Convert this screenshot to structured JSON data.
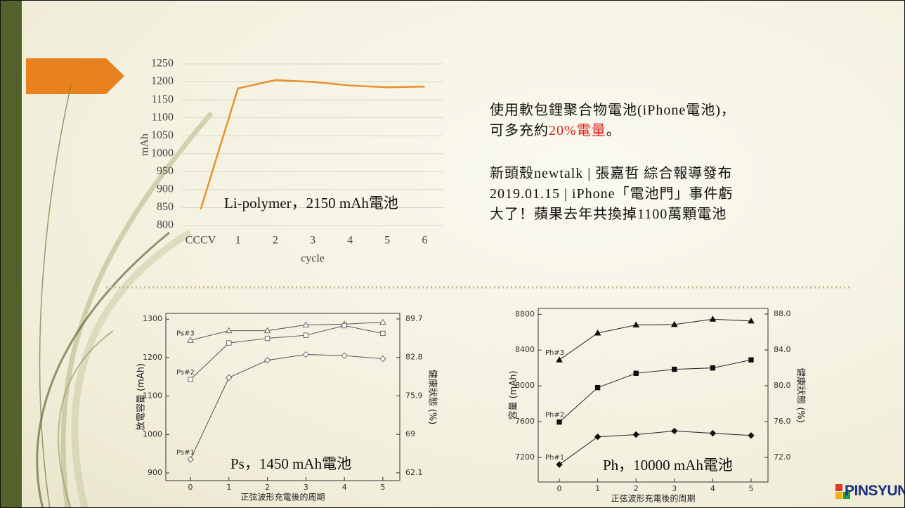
{
  "slide": {
    "note": {
      "line1": "使用軟包鋰聚合物電池(iPhone電池)，",
      "line2_start": "可多充約",
      "highlight": "20%電量",
      "line2_end": "。"
    },
    "source_lines": [
      "新頭殼newtalk | 張嘉哲 綜合報導發布",
      "2019.01.15 | iPhone「電池門」事件虧",
      "大了！蘋果去年共換掉1100萬顆電池"
    ],
    "logo": "PINSYUN"
  },
  "chart_data": [
    {
      "type": "line",
      "categories": [
        "CCCV",
        "1",
        "2",
        "3",
        "4",
        "5",
        "6"
      ],
      "values": [
        845,
        1182,
        1205,
        1200,
        1190,
        1185,
        1187
      ],
      "color": "#e8912d",
      "ylim": [
        800,
        1250
      ],
      "yticks": [
        800,
        850,
        900,
        950,
        1000,
        1050,
        1100,
        1150,
        1200,
        1250
      ],
      "grid": true,
      "y_label": "mAh",
      "x_label": "cycle",
      "annotation": "Li-polymer，2150 mAh電池"
    },
    {
      "type": "line",
      "x": [
        0,
        1,
        2,
        3,
        4,
        5
      ],
      "xlim": [
        -0.64,
        5.44
      ],
      "xticks": [
        0,
        1,
        2,
        3,
        4,
        5
      ],
      "ylim": [
        880,
        1315
      ],
      "yticks": [
        900,
        1000,
        1100,
        1200,
        1300
      ],
      "y2lim": [
        60.7,
        90.7
      ],
      "y2ticks": [
        62.1,
        69.0,
        75.9,
        82.8,
        89.7
      ],
      "y_label": "放電容量 (mAh)",
      "y2_label": "健康狀態 (%)",
      "x_label": "正弦波形充電後的周期",
      "annotation": "Ps，1450 mAh電池",
      "marker_filled": false,
      "color": "#555555",
      "series": [
        {
          "name": "Ps#3",
          "marker": "triangle",
          "values": [
            1245,
            1270,
            1270,
            1285,
            1287,
            1292
          ]
        },
        {
          "name": "Ps#2",
          "marker": "square",
          "values": [
            1143,
            1238,
            1250,
            1258,
            1283,
            1263
          ]
        },
        {
          "name": "Ps#1",
          "marker": "diamond",
          "values": [
            935,
            1148,
            1193,
            1208,
            1205,
            1197
          ]
        }
      ]
    },
    {
      "type": "line",
      "x": [
        0,
        1,
        2,
        3,
        4,
        5
      ],
      "xlim": [
        -0.55,
        5.44
      ],
      "xticks": [
        0,
        1,
        2,
        3,
        4,
        5
      ],
      "ylim": [
        6925,
        8865
      ],
      "yticks": [
        7200,
        7600,
        8000,
        8400,
        8800
      ],
      "y2lim": [
        69.25,
        88.63
      ],
      "y2ticks": [
        {
          "value": 72,
          "label": "72.0"
        },
        {
          "value": 76,
          "label": "76.0"
        },
        {
          "value": 80,
          "label": "80.0"
        },
        {
          "value": 84,
          "label": "84.0"
        },
        {
          "value": 88,
          "label": "88.0"
        }
      ],
      "y_label": "容量 (mAh)",
      "y2_label": "健康狀態 (%)",
      "x_label": "正弦波形充電後的周期",
      "annotation": "Ph，10000 mAh電池",
      "marker_filled": true,
      "color": "#222222",
      "series": [
        {
          "name": "Ph#3",
          "marker": "triangle",
          "values": [
            8290,
            8590,
            8680,
            8685,
            8745,
            8725
          ]
        },
        {
          "name": "Ph#2",
          "marker": "square",
          "values": [
            7595,
            7980,
            8140,
            8185,
            8200,
            8290
          ]
        },
        {
          "name": "Ph#1",
          "marker": "diamond",
          "values": [
            7120,
            7430,
            7455,
            7495,
            7470,
            7445
          ]
        }
      ]
    }
  ]
}
